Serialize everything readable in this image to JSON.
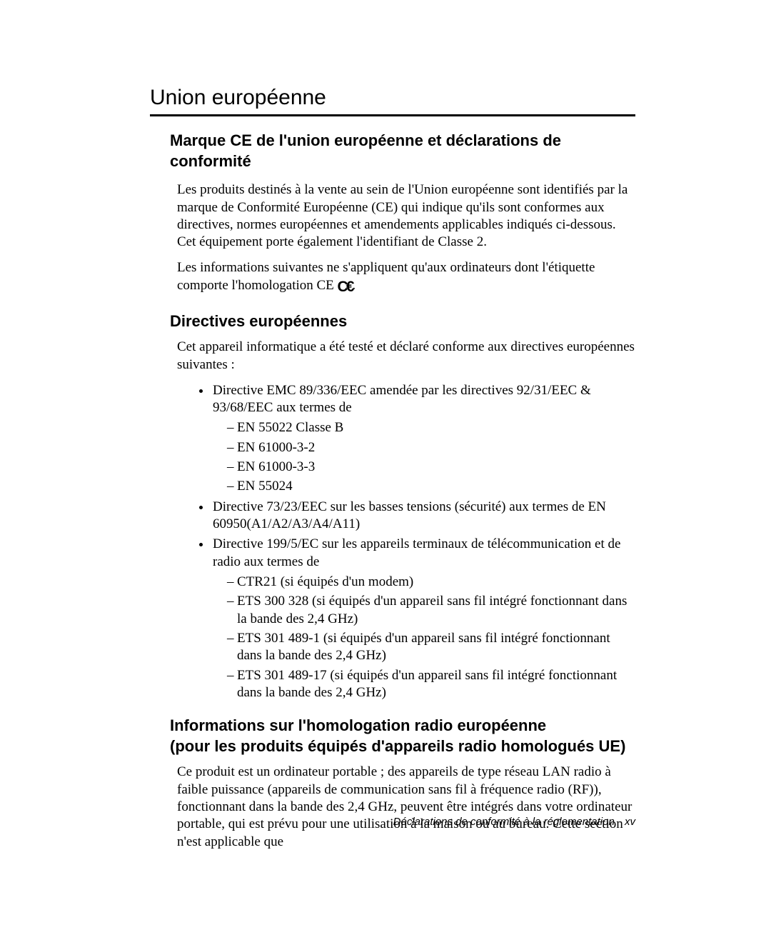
{
  "section_title": "Union européenne",
  "h2_ce": "Marque CE de l'union européenne et déclarations de conformité",
  "p_ce_1": "Les produits destinés à la vente au sein de l'Union européenne sont identifiés par la marque de Conformité Européenne (CE) qui indique qu'ils sont conformes aux directives, normes européennes et amendements applicables indiqués ci-dessous. Cet équipement porte également l'identifiant de Classe 2.",
  "p_ce_2a": "Les informations suivantes ne s'appliquent qu'aux ordinateurs dont l'étiquette comporte l'homologation CE ",
  "p_ce_2b": ".",
  "h3_dir": "Directives européennes",
  "p_dir_intro": "Cet appareil informatique a été testé et déclaré conforme aux directives européennes suivantes :",
  "b1": "Directive EMC 89/336/EEC amendée par les directives 92/31/EEC & 93/68/EEC aux termes de",
  "b1_s1": "EN 55022 Classe B",
  "b1_s2": "EN 61000-3-2",
  "b1_s3": "EN 61000-3-3",
  "b1_s4": "EN 55024",
  "b2": "Directive 73/23/EEC sur les basses tensions (sécurité) aux termes de EN 60950(A1/A2/A3/A4/A11)",
  "b3": "Directive 199/5/EC sur les appareils terminaux de télécommunication et de radio aux termes de",
  "b3_s1": "CTR21 (si équipés d'un modem)",
  "b3_s2": "ETS 300 328 (si équipés d'un appareil sans fil intégré fonctionnant dans la bande des 2,4 GHz)",
  "b3_s3": "ETS 301 489-1 (si équipés d'un appareil sans fil intégré fonctionnant dans la bande des 2,4 GHz)",
  "b3_s4": "ETS 301 489-17 (si équipés d'un appareil sans fil intégré fonctionnant dans la bande des 2,4 GHz)",
  "h3_radio_l1": "Informations sur l'homologation radio européenne",
  "h3_radio_l2": "(pour les produits équipés d'appareils radio homologués UE)",
  "p_radio": "Ce produit est un ordinateur portable ; des appareils de type réseau LAN radio à faible puissance (appareils de communication sans fil à fréquence radio (RF)), fonctionnant dans la bande des 2,4 GHz, peuvent être intégrés dans votre ordinateur portable, qui est prévu pour une utilisation à la maison ou au bureau. Cette section n'est applicable que",
  "footer_text": "Déclarations de conformité à la réglementation",
  "footer_page": "xv"
}
